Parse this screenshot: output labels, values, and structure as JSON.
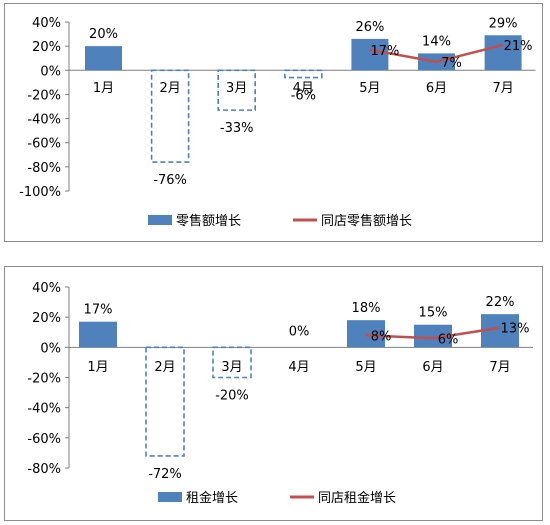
{
  "chart_data": [
    {
      "type": "bar",
      "categories": [
        "1月",
        "2月",
        "3月",
        "4月",
        "5月",
        "6月",
        "7月"
      ],
      "series": [
        {
          "name": "零售额增长",
          "type": "bar",
          "values": [
            20,
            -76,
            -33,
            -6,
            26,
            14,
            29
          ],
          "labels": [
            "20%",
            "-76%",
            "-33%",
            "-6%",
            "26%",
            "14%",
            "29%"
          ]
        },
        {
          "name": "同店零售额增长",
          "type": "line",
          "x": [
            "5月",
            "6月",
            "7月"
          ],
          "values": [
            17,
            7,
            21
          ],
          "labels": [
            "17%",
            "7%",
            "21%"
          ]
        }
      ],
      "yticks": [
        "40%",
        "20%",
        "0%",
        "-20%",
        "-40%",
        "-60%",
        "-80%",
        "-100%"
      ],
      "ylim": [
        -100,
        40
      ],
      "legend_position": "bottom",
      "colors": {
        "bar": "#4f81bd",
        "negative_bar_outline": "#4f81bd",
        "line": "#c0504d"
      }
    },
    {
      "type": "bar",
      "categories": [
        "1月",
        "2月",
        "3月",
        "4月",
        "5月",
        "6月",
        "7月"
      ],
      "series": [
        {
          "name": "租金增长",
          "type": "bar",
          "values": [
            17,
            -72,
            -20,
            0,
            18,
            15,
            22
          ],
          "labels": [
            "17%",
            "-72%",
            "-20%",
            "0%",
            "18%",
            "15%",
            "22%"
          ]
        },
        {
          "name": "同店租金增长",
          "type": "line",
          "x": [
            "5月",
            "6月",
            "7月"
          ],
          "values": [
            8,
            6,
            13
          ],
          "labels": [
            "8%",
            "6%",
            "13%"
          ]
        }
      ],
      "yticks": [
        "40%",
        "20%",
        "0%",
        "-20%",
        "-40%",
        "-60%",
        "-80%"
      ],
      "ylim": [
        -80,
        40
      ],
      "legend_position": "bottom",
      "colors": {
        "bar": "#4f81bd",
        "negative_bar_outline": "#4f81bd",
        "line": "#c0504d"
      }
    }
  ]
}
